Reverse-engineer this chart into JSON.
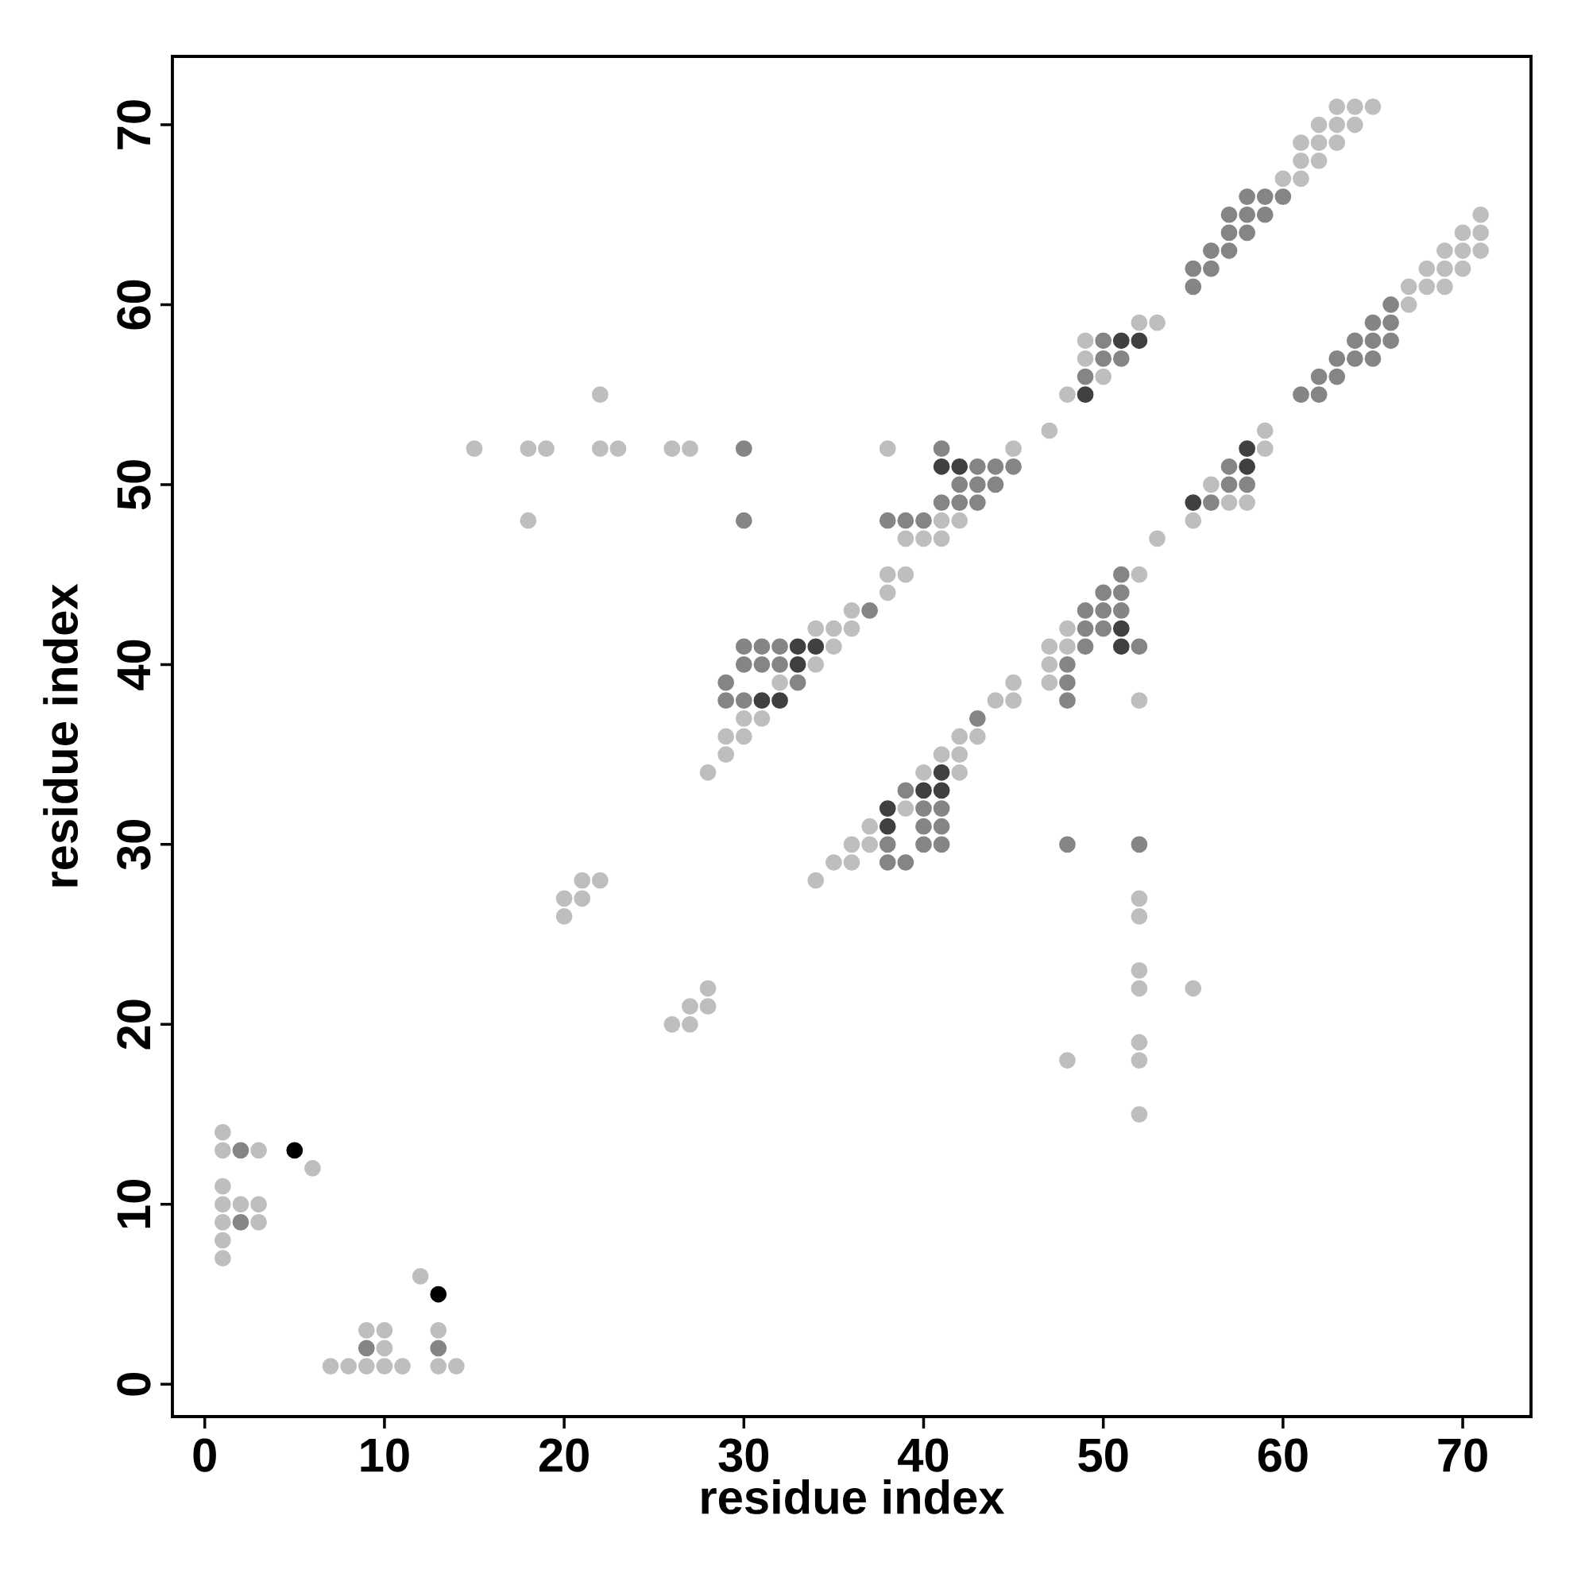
{
  "chart_data": {
    "type": "scatter",
    "xlabel": "residue index",
    "ylabel": "residue index",
    "xlim": [
      -1.8,
      73.8
    ],
    "ylim": [
      -1.8,
      73.8
    ],
    "xticks": [
      0,
      10,
      20,
      30,
      40,
      50,
      60,
      70
    ],
    "yticks": [
      0,
      10,
      20,
      30,
      40,
      50,
      60,
      70
    ],
    "series": [
      {
        "color": "#bebebe",
        "x": [
          1,
          1,
          3,
          6,
          1,
          1,
          2,
          3,
          1,
          3,
          1,
          1,
          12,
          9,
          10,
          13,
          10,
          7,
          8,
          9,
          10,
          11,
          13,
          14,
          15,
          18,
          19,
          22,
          23,
          26,
          27,
          38,
          45,
          22,
          18,
          20,
          21,
          20,
          21,
          22,
          26,
          27,
          27,
          28,
          28,
          28,
          29,
          29,
          30,
          30,
          31,
          32,
          34,
          35,
          34,
          35,
          36,
          36,
          38,
          38,
          39,
          39,
          40,
          41,
          41,
          42,
          47,
          48,
          50,
          49,
          49,
          52,
          53,
          60,
          61,
          61,
          62,
          61,
          62,
          63,
          62,
          63,
          64,
          63,
          64,
          65,
          53,
          55,
          57,
          58,
          56,
          59,
          59,
          67,
          67,
          68,
          69,
          68,
          69,
          70,
          69,
          70,
          71,
          70,
          71,
          71,
          52,
          48,
          47,
          48,
          47,
          47,
          52,
          45,
          44,
          45,
          42,
          43,
          41,
          42,
          40,
          42,
          39,
          37,
          36,
          37,
          35,
          36,
          34,
          52,
          52,
          52,
          52,
          52,
          52,
          52,
          48,
          55
        ],
        "values": [
          14,
          13,
          13,
          12,
          11,
          10,
          10,
          10,
          9,
          9,
          8,
          7,
          6,
          3,
          3,
          3,
          2,
          1,
          1,
          1,
          1,
          1,
          1,
          1,
          52,
          52,
          52,
          52,
          52,
          52,
          52,
          52,
          52,
          55,
          48,
          27,
          27,
          26,
          28,
          28,
          20,
          20,
          21,
          21,
          22,
          34,
          35,
          36,
          36,
          37,
          37,
          39,
          40,
          41,
          42,
          42,
          42,
          43,
          44,
          45,
          45,
          47,
          47,
          47,
          48,
          48,
          53,
          55,
          56,
          57,
          58,
          59,
          59,
          67,
          67,
          68,
          68,
          69,
          69,
          69,
          70,
          70,
          70,
          71,
          71,
          71,
          47,
          48,
          49,
          49,
          50,
          52,
          53,
          60,
          61,
          61,
          61,
          62,
          62,
          62,
          63,
          63,
          63,
          64,
          64,
          65,
          45,
          42,
          41,
          41,
          40,
          39,
          38,
          39,
          38,
          38,
          36,
          36,
          35,
          35,
          34,
          34,
          32,
          31,
          30,
          30,
          29,
          29,
          28,
          27,
          26,
          23,
          22,
          19,
          18,
          15,
          18,
          22
        ]
      },
      {
        "color": "#858585",
        "x": [
          2,
          2,
          9,
          13,
          30,
          41,
          30,
          29,
          30,
          29,
          33,
          30,
          31,
          32,
          30,
          31,
          32,
          37,
          38,
          39,
          40,
          41,
          42,
          43,
          42,
          43,
          44,
          43,
          44,
          45,
          49,
          50,
          51,
          50,
          55,
          55,
          56,
          56,
          57,
          57,
          58,
          57,
          58,
          59,
          58,
          59,
          60,
          56,
          57,
          58,
          57,
          61,
          62,
          62,
          63,
          63,
          64,
          65,
          64,
          65,
          66,
          65,
          66,
          66,
          51,
          50,
          51,
          49,
          50,
          51,
          49,
          50,
          49,
          52,
          48,
          48,
          48,
          43,
          39,
          40,
          41,
          40,
          41,
          38,
          40,
          41,
          48,
          52,
          38,
          39
        ],
        "values": [
          13,
          9,
          2,
          2,
          52,
          52,
          48,
          38,
          38,
          39,
          39,
          40,
          40,
          40,
          41,
          41,
          41,
          43,
          48,
          48,
          48,
          49,
          49,
          49,
          50,
          50,
          50,
          51,
          51,
          51,
          56,
          57,
          57,
          58,
          61,
          62,
          62,
          63,
          63,
          64,
          64,
          65,
          65,
          65,
          66,
          66,
          66,
          49,
          50,
          50,
          51,
          55,
          55,
          56,
          56,
          57,
          57,
          57,
          58,
          58,
          58,
          59,
          59,
          60,
          45,
          44,
          44,
          43,
          43,
          43,
          42,
          42,
          41,
          41,
          40,
          39,
          38,
          37,
          33,
          32,
          32,
          31,
          31,
          30,
          30,
          30,
          30,
          30,
          29,
          29
        ]
      },
      {
        "color": "#404040",
        "x": [
          31,
          32,
          33,
          33,
          34,
          41,
          42,
          49,
          51,
          52,
          55,
          58,
          58,
          51,
          51,
          41,
          40,
          41,
          38,
          38
        ],
        "values": [
          38,
          38,
          40,
          41,
          41,
          51,
          51,
          55,
          58,
          58,
          49,
          51,
          52,
          42,
          41,
          34,
          33,
          33,
          32,
          31
        ]
      },
      {
        "color": "#000000",
        "x": [
          5,
          13
        ],
        "values": [
          13,
          5
        ]
      }
    ]
  }
}
